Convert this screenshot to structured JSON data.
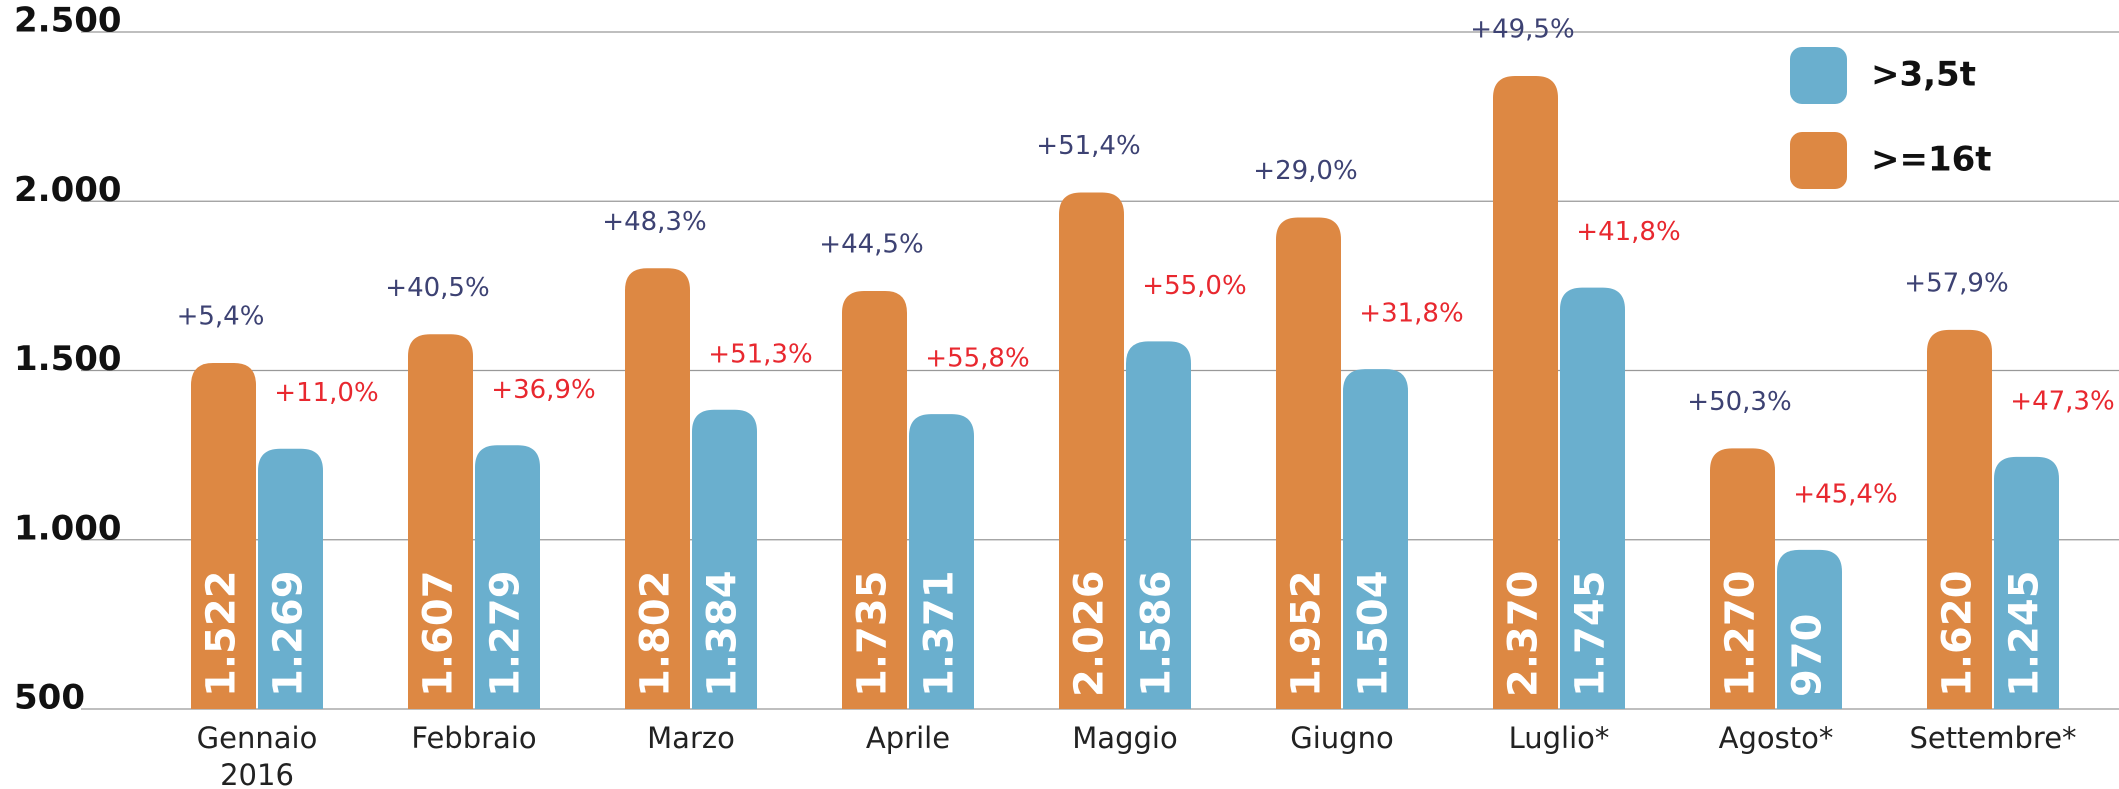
{
  "chart_data": {
    "type": "bar",
    "categories": [
      "Gennaio 2016",
      "Febbraio",
      "Marzo",
      "Aprile",
      "Maggio",
      "Giugno",
      "Luglio*",
      "Agosto*",
      "Settembre*"
    ],
    "series": [
      {
        "name": ">=16t",
        "color": "#dd8843",
        "values": [
          1522,
          1607,
          1802,
          1735,
          2026,
          1952,
          2370,
          1270,
          1620
        ],
        "value_labels": [
          "1.522",
          "1.607",
          "1.802",
          "1.735",
          "2.026",
          "1.952",
          "2.370",
          "1.270",
          "1.620"
        ],
        "change_labels": [
          "+5,4%",
          "+40,5%",
          "+48,3%",
          "+44,5%",
          "+51,4%",
          "+29,0%",
          "+49,5%",
          "+50,3%",
          "+57,9%"
        ],
        "change_color": "#3d4273"
      },
      {
        "name": ">3,5t",
        "color": "#6aafce",
        "values": [
          1269,
          1279,
          1384,
          1371,
          1586,
          1504,
          1745,
          970,
          1245
        ],
        "value_labels": [
          "1.269",
          "1.279",
          "1.384",
          "1.371",
          "1.586",
          "1.504",
          "1.745",
          "970",
          "1.245"
        ],
        "change_labels": [
          "+11,0%",
          "+36,9%",
          "+51,3%",
          "+55,8%",
          "+55,0%",
          "+31,8%",
          "+41,8%",
          "+45,4%",
          "+47,3%"
        ],
        "change_color": "#e8282f"
      }
    ],
    "ylim": [
      500,
      2500
    ],
    "yticks": [
      {
        "value": 500,
        "label": "500"
      },
      {
        "value": 1000,
        "label": "1.000"
      },
      {
        "value": 1500,
        "label": "1.500"
      },
      {
        "value": 2000,
        "label": "2.000"
      },
      {
        "value": 2500,
        "label": "2.500"
      }
    ],
    "grid": true,
    "legend": "top-right"
  }
}
